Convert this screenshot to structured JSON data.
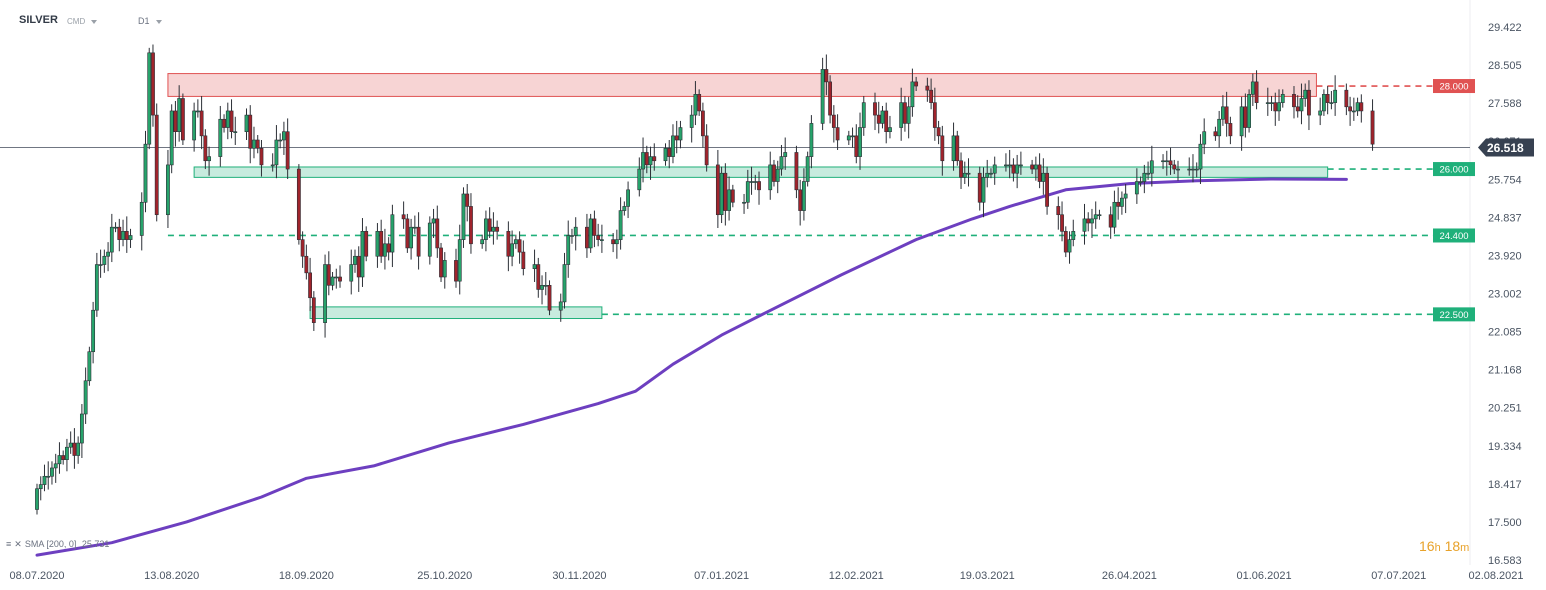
{
  "header": {
    "symbol": "SILVER",
    "type": "CMD",
    "timeframe": "D1"
  },
  "indicator": {
    "settings": "SMA [200, 0]",
    "value": "25.731"
  },
  "timer": {
    "hours": "16",
    "h_unit": "h",
    "minutes": "18",
    "m_unit": "m"
  },
  "chart_data": {
    "type": "candlestick",
    "title": "",
    "y_ticks": [
      "29.422",
      "28.505",
      "27.588",
      "26.671",
      "25.754",
      "24.837",
      "23.920",
      "23.002",
      "22.085",
      "21.168",
      "20.251",
      "19.334",
      "18.417",
      "17.500",
      "16.583"
    ],
    "x_ticks": [
      "08.07.2020",
      "13.08.2020",
      "18.09.2020",
      "25.10.2020",
      "30.11.2020",
      "07.01.2021",
      "12.02.2021",
      "19.03.2021",
      "26.04.2021",
      "01.06.2021",
      "07.07.2021",
      "02.08.2021"
    ],
    "x_tick_days": [
      0,
      36,
      72,
      109,
      145,
      183,
      219,
      254,
      292,
      328,
      364,
      390
    ],
    "ylim": [
      16.583,
      29.422
    ],
    "xlim": [
      0,
      390
    ],
    "current_price": {
      "value": 26.518,
      "label": "26.518",
      "color": "#374151"
    },
    "levels": [
      {
        "value": 28.0,
        "label": "28.000",
        "color": "#e05252",
        "kind": "resistance"
      },
      {
        "value": 26.0,
        "label": "26.000",
        "color": "#1fb07a",
        "kind": "support"
      },
      {
        "value": 24.4,
        "label": "24.400",
        "color": "#1fb07a",
        "kind": "support"
      },
      {
        "value": 22.5,
        "label": "22.500",
        "color": "#1fb07a",
        "kind": "support"
      }
    ],
    "zones": [
      {
        "d1": 35,
        "d2": 342,
        "y1": 27.75,
        "y2": 28.3,
        "color": "#e05252"
      },
      {
        "d1": 42,
        "d2": 345,
        "y1": 25.8,
        "y2": 26.05,
        "color": "#1fb07a"
      },
      {
        "d1": 73,
        "d2": 151,
        "y1": 22.4,
        "y2": 22.68,
        "color": "#1fb07a"
      }
    ],
    "sma": {
      "name": "SMA [200, 0]",
      "color": "#6d3fc0",
      "points": [
        [
          0,
          16.7
        ],
        [
          20,
          17.0
        ],
        [
          40,
          17.5
        ],
        [
          60,
          18.1
        ],
        [
          72,
          18.55
        ],
        [
          90,
          18.85
        ],
        [
          110,
          19.4
        ],
        [
          130,
          19.85
        ],
        [
          150,
          20.35
        ],
        [
          160,
          20.65
        ],
        [
          170,
          21.3
        ],
        [
          183,
          22.0
        ],
        [
          195,
          22.55
        ],
        [
          215,
          23.45
        ],
        [
          235,
          24.3
        ],
        [
          250,
          24.8
        ],
        [
          260,
          25.1
        ],
        [
          275,
          25.5
        ],
        [
          292,
          25.65
        ],
        [
          310,
          25.72
        ],
        [
          330,
          25.76
        ],
        [
          350,
          25.75
        ]
      ]
    },
    "candle_dates": [
      0,
      1,
      2,
      3,
      4,
      5,
      6,
      7,
      8,
      9,
      10,
      11,
      12,
      13,
      14,
      15,
      16,
      17,
      18,
      19,
      20,
      21,
      22,
      23,
      24,
      25,
      28,
      29,
      30,
      31,
      32,
      35,
      36,
      37,
      38,
      39,
      42,
      43,
      44,
      45,
      46,
      49,
      50,
      51,
      52,
      53,
      56,
      57,
      58,
      59,
      60,
      63,
      64,
      65,
      66,
      67,
      70,
      71,
      72,
      73,
      74,
      77,
      78,
      79,
      80,
      81,
      84,
      85,
      86,
      87,
      88,
      91,
      92,
      93,
      94,
      95,
      98,
      99,
      100,
      101,
      102,
      105,
      106,
      107,
      108,
      109,
      112,
      113,
      114,
      115,
      116,
      119,
      120,
      121,
      122,
      123,
      126,
      127,
      128,
      129,
      130,
      133,
      134,
      135,
      136,
      137,
      140,
      141,
      142,
      143,
      144,
      147,
      148,
      149,
      150,
      151,
      154,
      155,
      156,
      157,
      158,
      161,
      162,
      163,
      164,
      165,
      168,
      169,
      170,
      171,
      172,
      175,
      176,
      177,
      178,
      179,
      182,
      183,
      184,
      185,
      186,
      189,
      190,
      191,
      192,
      193,
      196,
      197,
      198,
      199,
      200,
      203,
      204,
      205,
      206,
      207,
      210,
      211,
      212,
      213,
      214,
      217,
      218,
      219,
      220,
      221,
      224,
      225,
      226,
      227,
      228,
      231,
      232,
      233,
      234,
      235,
      238,
      239,
      240,
      241,
      242,
      245,
      246,
      247,
      248,
      249,
      252,
      253,
      254,
      255,
      256,
      259,
      260,
      261,
      262,
      263,
      266,
      267,
      268,
      269,
      270,
      273,
      274,
      275,
      276,
      277,
      280,
      281,
      282,
      283,
      284,
      287,
      288,
      289,
      290,
      291,
      294,
      295,
      296,
      297,
      298,
      301,
      302,
      303,
      304,
      305,
      308,
      309,
      310,
      311,
      312,
      315,
      316,
      317,
      318,
      319,
      322,
      323,
      324,
      325,
      326,
      329,
      330,
      331,
      332,
      333,
      336,
      337,
      338,
      339,
      340,
      343,
      344,
      345,
      346,
      347,
      350,
      351,
      352,
      353,
      354,
      357
    ],
    "candles_o": [
      17.8,
      18.3,
      18.4,
      18.6,
      18.6,
      18.8,
      18.9,
      19.1,
      19.0,
      19.3,
      19.4,
      19.1,
      19.4,
      20.1,
      20.9,
      21.6,
      22.6,
      23.7,
      23.7,
      23.9,
      24.0,
      24.6,
      24.6,
      24.3,
      24.5,
      24.3,
      24.4,
      25.2,
      26.6,
      28.8,
      27.3,
      24.9,
      26.1,
      27.4,
      26.9,
      27.7,
      26.7,
      27.4,
      27.4,
      26.8,
      26.2,
      26.3,
      27.2,
      27.0,
      27.4,
      26.9,
      26.9,
      27.3,
      26.5,
      26.7,
      26.5,
      26.1,
      26.1,
      26.7,
      26.7,
      26.9,
      26.0,
      24.3,
      23.9,
      23.5,
      22.9,
      22.3,
      23.7,
      23.2,
      23.4,
      23.4,
      23.3,
      23.7,
      23.9,
      23.4,
      24.5,
      23.9,
      24.5,
      23.9,
      24.2,
      24.0,
      24.9,
      24.8,
      24.1,
      24.6,
      24.6,
      23.9,
      24.7,
      24.8,
      24.1,
      23.4,
      23.8,
      23.3,
      24.3,
      25.4,
      25.1,
      24.2,
      24.3,
      24.8,
      24.5,
      24.6,
      24.5,
      23.9,
      24.2,
      24.3,
      24.0,
      23.6,
      23.7,
      23.1,
      23.2,
      23.2,
      22.6,
      22.8,
      23.7,
      24.4,
      24.4,
      24.6,
      24.1,
      24.8,
      24.4,
      24.3,
      24.3,
      24.2,
      24.3,
      25.0,
      25.1,
      25.5,
      26.0,
      26.4,
      26.1,
      26.3,
      26.2,
      26.5,
      26.3,
      26.8,
      26.7,
      27.0,
      27.3,
      27.8,
      27.4,
      26.8,
      26.1,
      24.9,
      25.9,
      25.0,
      25.5,
      25.2,
      25.2,
      25.7,
      25.7,
      25.7,
      25.5,
      26.1,
      25.7,
      26.0,
      26.3,
      26.4,
      25.5,
      25.0,
      25.7,
      26.3,
      27.1,
      28.4,
      28.1,
      27.3,
      27.0,
      26.7,
      26.8,
      26.8,
      26.3,
      27.0,
      27.6,
      27.3,
      27.1,
      27.4,
      26.9,
      27.0,
      27.6,
      27.1,
      27.5,
      28.1,
      28.0,
      27.9,
      27.6,
      27.0,
      26.8,
      26.2,
      26.8,
      26.2,
      25.8,
      25.9,
      25.9,
      25.2,
      25.8,
      25.9,
      25.9,
      26.1,
      26.1,
      26.1,
      25.9,
      26.1,
      26.1,
      26.0,
      26.1,
      25.7,
      25.9,
      25.1,
      24.9,
      24.5,
      24.0,
      24.3,
      24.5,
      24.8,
      24.7,
      24.8,
      24.9,
      24.9,
      24.6,
      25.2,
      25.1,
      25.3,
      25.4,
      25.7,
      25.7,
      25.9,
      25.9,
      26.2,
      26.2,
      26.2,
      26.1,
      26.0,
      26.0,
      26.0,
      26.0,
      26.0,
      26.6,
      26.9,
      26.8,
      27.2,
      27.5,
      27.1,
      26.8,
      27.5,
      27.0,
      27.8,
      28.1,
      27.6,
      27.6,
      27.6,
      27.4,
      27.6,
      27.8,
      27.5,
      27.4,
      27.7,
      27.9,
      27.3,
      27.4,
      27.8,
      27.6,
      27.6,
      27.9,
      27.5,
      27.4,
      27.4,
      27.6,
      27.4,
      26.6,
      26.0,
      25.9,
      25.7,
      25.6,
      25.8,
      25.8,
      25.8,
      25.8,
      25.9,
      26.4
    ],
    "candles_c": [
      18.3,
      18.4,
      18.6,
      18.6,
      18.8,
      18.9,
      19.1,
      19.0,
      19.3,
      19.4,
      19.1,
      19.4,
      20.1,
      20.9,
      21.6,
      22.6,
      23.7,
      23.7,
      23.9,
      24.0,
      24.6,
      24.6,
      24.3,
      24.5,
      24.3,
      24.4,
      25.2,
      26.6,
      28.8,
      27.3,
      24.9,
      26.1,
      27.4,
      26.9,
      27.7,
      26.7,
      27.4,
      27.4,
      26.8,
      26.2,
      26.3,
      27.2,
      27.0,
      27.4,
      26.9,
      26.9,
      27.3,
      26.5,
      26.7,
      26.5,
      26.1,
      26.1,
      26.7,
      26.7,
      26.9,
      26.0,
      24.3,
      23.9,
      23.5,
      22.9,
      22.3,
      23.7,
      23.2,
      23.4,
      23.4,
      23.3,
      23.7,
      23.9,
      23.4,
      24.5,
      23.9,
      24.5,
      23.9,
      24.2,
      24.0,
      24.9,
      24.8,
      24.1,
      24.6,
      24.6,
      23.9,
      24.7,
      24.8,
      24.1,
      23.4,
      23.8,
      23.3,
      24.3,
      25.4,
      25.1,
      24.2,
      24.3,
      24.8,
      24.5,
      24.6,
      24.5,
      23.9,
      24.2,
      24.3,
      24.0,
      23.6,
      23.7,
      23.1,
      23.2,
      23.2,
      22.6,
      22.8,
      23.7,
      24.4,
      24.4,
      24.6,
      24.1,
      24.8,
      24.4,
      24.3,
      24.3,
      24.2,
      24.3,
      25.0,
      25.1,
      25.5,
      26.0,
      26.4,
      26.1,
      26.3,
      26.2,
      26.5,
      26.3,
      26.8,
      26.7,
      27.0,
      27.3,
      27.8,
      27.4,
      26.8,
      26.1,
      24.9,
      25.9,
      25.0,
      25.5,
      25.2,
      25.2,
      25.7,
      25.7,
      25.7,
      25.5,
      26.1,
      25.7,
      26.0,
      26.3,
      26.4,
      25.5,
      25.0,
      25.7,
      26.3,
      27.1,
      28.4,
      28.1,
      27.3,
      27.0,
      26.7,
      26.8,
      26.8,
      26.3,
      27.0,
      27.6,
      27.3,
      27.1,
      27.4,
      26.9,
      27.0,
      27.6,
      27.1,
      27.5,
      28.1,
      28.0,
      27.9,
      27.6,
      27.0,
      26.8,
      26.2,
      26.8,
      26.2,
      25.8,
      25.9,
      25.9,
      25.2,
      25.8,
      25.9,
      25.9,
      26.1,
      26.1,
      26.1,
      25.9,
      26.1,
      26.1,
      26.0,
      26.1,
      25.7,
      25.9,
      25.1,
      24.9,
      24.5,
      24.0,
      24.3,
      24.5,
      24.8,
      24.7,
      24.8,
      24.9,
      24.9,
      24.6,
      25.2,
      25.1,
      25.3,
      25.4,
      25.7,
      25.7,
      25.9,
      25.9,
      26.2,
      26.2,
      26.2,
      26.1,
      26.0,
      26.0,
      26.0,
      26.0,
      26.0,
      26.6,
      26.9,
      26.8,
      27.2,
      27.5,
      27.1,
      26.8,
      27.5,
      27.0,
      27.8,
      28.1,
      27.6,
      27.6,
      27.6,
      27.4,
      27.6,
      27.8,
      27.5,
      27.4,
      27.7,
      27.9,
      27.3,
      27.4,
      27.8,
      27.6,
      27.6,
      27.9,
      27.5,
      27.4,
      27.4,
      27.6,
      27.4,
      26.6,
      26.0,
      25.9,
      25.7,
      25.6,
      25.8,
      25.8,
      25.8,
      25.8,
      25.9,
      26.4,
      26.5
    ]
  }
}
